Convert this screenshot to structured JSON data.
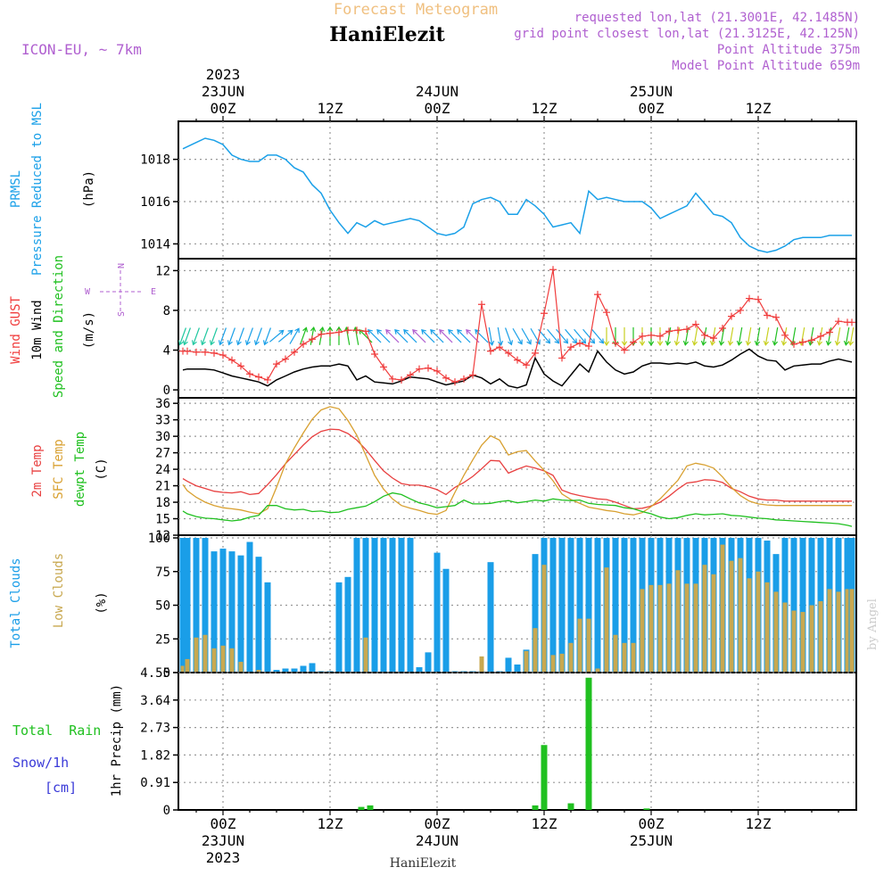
{
  "header": {
    "title": "Forecast Meteogram",
    "station": "HaniElezit",
    "model": "ICON-EU, ~ 7km",
    "requested": "requested lon,lat (21.3001E, 42.1485N)",
    "gridpoint": "grid point closest lon,lat (21.3125E, 42.125N)",
    "point_alt": "Point Altitude 375m",
    "model_alt": "Model Point Altitude 659m",
    "footer_station": "HaniElezit",
    "watermark": "by Angel"
  },
  "colors": {
    "pressure": "#1aa0e8",
    "gust": "#f03c3c",
    "wind": "#000000",
    "temp2m": "#e84040",
    "sfc": "#d8a030",
    "dewpt": "#20c020",
    "total_clouds": "#1a9ee8",
    "low_clouds": "#c8a850",
    "rain": "#20c020",
    "snow": "#3a3ad8",
    "dir_purple": "#b060d0",
    "title_color": "#f0c080"
  },
  "time_axis": {
    "top_labels": [
      {
        "h": 0,
        "lines": [
          "2023",
          "23JUN",
          "00Z"
        ]
      },
      {
        "h": 12,
        "lines": [
          "12Z"
        ]
      },
      {
        "h": 24,
        "lines": [
          "24JUN",
          "00Z"
        ]
      },
      {
        "h": 36,
        "lines": [
          "12Z"
        ]
      },
      {
        "h": 48,
        "lines": [
          "25JUN",
          "00Z"
        ]
      },
      {
        "h": 60,
        "lines": [
          "12Z"
        ]
      }
    ],
    "bottom_labels": [
      {
        "h": 0,
        "lines": [
          "00Z",
          "23JUN",
          "2023"
        ]
      },
      {
        "h": 12,
        "lines": [
          "12Z"
        ]
      },
      {
        "h": 24,
        "lines": [
          "00Z",
          "24JUN"
        ]
      },
      {
        "h": 36,
        "lines": [
          "12Z"
        ]
      },
      {
        "h": 48,
        "lines": [
          "00Z",
          "25JUN"
        ]
      },
      {
        "h": 60,
        "lines": [
          "12Z"
        ]
      }
    ],
    "range_hours": [
      -5,
      71
    ]
  },
  "panel_labels": {
    "pressure": {
      "a": "PRMSL",
      "b": "Pressure Reduced to MSL",
      "unit": "(hPa)"
    },
    "wind": {
      "gust": "Wind GUST",
      "wind": "10m Wind",
      "speed": "Speed and Direction",
      "unit": "(m/s)",
      "compass_n": "N",
      "compass_s": "S",
      "compass_w": "W",
      "compass_e": "E"
    },
    "temp": {
      "t2m": "2m Temp",
      "sfc": "SFC Temp",
      "dewpt": "dewpt Temp",
      "unit": "(C)"
    },
    "clouds": {
      "total": "Total Clouds",
      "low": "Low Clouds",
      "unit": "(%)"
    },
    "precip": {
      "rain": "Total  Rain",
      "snow": "Snow/1h",
      "snow_unit": "[cm]",
      "ylabel": "1hr Precip (mm)"
    }
  },
  "chart_data": [
    {
      "type": "line",
      "name": "PRMSL",
      "ylabel": "(hPa)",
      "ylim": [
        1013.3,
        1019.8
      ],
      "yticks": [
        1014,
        1016,
        1018
      ],
      "x": [
        -4.5,
        -4,
        -3,
        -2,
        -1,
        0,
        1,
        2,
        3,
        4,
        5,
        6,
        7,
        8,
        9,
        10,
        11,
        12,
        13,
        14,
        15,
        16,
        17,
        18,
        19,
        20,
        21,
        22,
        23,
        24,
        25,
        26,
        27,
        28,
        29,
        30,
        31,
        32,
        33,
        34,
        35,
        36,
        37,
        38,
        39,
        40,
        41,
        42,
        43,
        44,
        45,
        46,
        47,
        48,
        49,
        50,
        51,
        52,
        53,
        54,
        55,
        56,
        57,
        58,
        59,
        60,
        61,
        62,
        63,
        64,
        65,
        66,
        67,
        68,
        69,
        70,
        70.5
      ],
      "y": [
        1018.5,
        1018.6,
        1018.8,
        1019.0,
        1018.9,
        1018.7,
        1018.2,
        1018.0,
        1017.9,
        1017.9,
        1018.2,
        1018.2,
        1018.0,
        1017.6,
        1017.4,
        1016.8,
        1016.4,
        1015.6,
        1015.0,
        1014.5,
        1015.0,
        1014.8,
        1015.1,
        1014.9,
        1015.0,
        1015.1,
        1015.2,
        1015.1,
        1014.8,
        1014.5,
        1014.4,
        1014.5,
        1014.8,
        1015.9,
        1016.1,
        1016.2,
        1016.0,
        1015.4,
        1015.4,
        1016.1,
        1015.8,
        1015.4,
        1014.8,
        1014.9,
        1015.0,
        1014.5,
        1016.5,
        1016.1,
        1016.2,
        1016.1,
        1016.0,
        1016.0,
        1016.0,
        1015.7,
        1015.2,
        1015.4,
        1015.6,
        1015.8,
        1016.4,
        1015.9,
        1015.4,
        1015.3,
        1015.0,
        1014.3,
        1013.9,
        1013.7,
        1013.6,
        1013.7,
        1013.9,
        1014.2,
        1014.3,
        1014.3,
        1014.3,
        1014.4,
        1014.4,
        1014.4,
        1014.4
      ]
    },
    {
      "type": "line",
      "name": "Wind",
      "ylabel": "(m/s)",
      "ylim": [
        -0.8,
        13.2
      ],
      "yticks": [
        0,
        4,
        8,
        12
      ],
      "x": [
        -4.5,
        -4,
        -3,
        -2,
        -1,
        0,
        1,
        2,
        3,
        4,
        5,
        6,
        7,
        8,
        9,
        10,
        11,
        12,
        13,
        14,
        15,
        16,
        17,
        18,
        19,
        20,
        21,
        22,
        23,
        24,
        25,
        26,
        27,
        28,
        29,
        30,
        31,
        32,
        33,
        34,
        35,
        36,
        37,
        38,
        39,
        40,
        41,
        42,
        43,
        44,
        45,
        46,
        47,
        48,
        49,
        50,
        51,
        52,
        53,
        54,
        55,
        56,
        57,
        58,
        59,
        60,
        61,
        62,
        63,
        64,
        65,
        66,
        67,
        68,
        69,
        70,
        70.5
      ],
      "series": [
        {
          "name": "Wind GUST",
          "values": [
            3.9,
            3.9,
            3.8,
            3.8,
            3.7,
            3.5,
            3.0,
            2.4,
            1.6,
            1.3,
            1.0,
            2.6,
            3.1,
            3.8,
            4.6,
            5.1,
            5.6,
            5.7,
            5.8,
            6.0,
            6.0,
            5.9,
            3.6,
            2.3,
            1.1,
            1.0,
            1.5,
            2.1,
            2.2,
            1.9,
            1.2,
            0.8,
            1.1,
            1.5,
            8.6,
            3.9,
            4.3,
            3.7,
            3.0,
            2.5,
            3.7,
            7.7,
            12.1,
            3.2,
            4.3,
            4.7,
            4.4,
            9.6,
            7.8,
            4.7,
            4.0,
            4.8,
            5.4,
            5.5,
            5.4,
            5.9,
            6.0,
            6.1,
            6.6,
            5.5,
            5.2,
            6.2,
            7.4,
            8.0,
            9.2,
            9.1,
            7.5,
            7.3,
            5.5,
            4.6,
            4.8,
            5.0,
            5.4,
            5.8,
            6.9,
            6.8,
            6.8
          ]
        },
        {
          "name": "10m Wind",
          "values": [
            2.0,
            2.1,
            2.1,
            2.1,
            2.0,
            1.7,
            1.4,
            1.2,
            1.0,
            0.8,
            0.4,
            1.0,
            1.4,
            1.8,
            2.1,
            2.3,
            2.4,
            2.4,
            2.6,
            2.4,
            1.0,
            1.4,
            0.8,
            0.7,
            0.6,
            0.9,
            1.3,
            1.2,
            1.1,
            0.8,
            0.5,
            0.7,
            0.9,
            1.5,
            1.2,
            0.6,
            1.1,
            0.4,
            0.2,
            0.5,
            3.2,
            1.6,
            0.9,
            0.4,
            1.5,
            2.6,
            1.8,
            3.9,
            2.8,
            2.0,
            1.6,
            1.8,
            2.4,
            2.7,
            2.7,
            2.6,
            2.7,
            2.6,
            2.8,
            2.4,
            2.3,
            2.5,
            3.0,
            3.6,
            4.1,
            3.4,
            3.0,
            2.9,
            2.0,
            2.4,
            2.5,
            2.6,
            2.6,
            2.9,
            3.1,
            2.9,
            2.8
          ]
        }
      ],
      "arrow_dirs_deg_from_north": [
        20,
        20,
        20,
        20,
        20,
        20,
        20,
        20,
        20,
        20,
        20,
        230,
        230,
        210,
        200,
        190,
        190,
        180,
        180,
        170,
        170,
        135,
        135,
        135,
        135,
        135,
        135,
        135,
        135,
        135,
        135,
        135,
        135,
        135,
        135,
        350,
        350,
        340,
        330,
        330,
        330,
        320,
        320,
        320,
        320,
        320,
        320,
        320,
        0,
        0,
        0,
        0,
        0,
        0,
        0,
        10,
        10,
        10,
        10,
        10,
        10,
        10,
        10,
        10,
        10,
        10,
        10,
        10,
        10,
        10,
        10,
        10,
        10,
        10,
        10,
        10,
        10
      ]
    },
    {
      "type": "line",
      "name": "Temperature",
      "ylabel": "(C)",
      "ylim": [
        12,
        37
      ],
      "yticks": [
        12,
        15,
        18,
        21,
        24,
        27,
        30,
        33,
        36
      ],
      "x": [
        -4.5,
        -4,
        -3,
        -2,
        -1,
        0,
        1,
        2,
        3,
        4,
        5,
        6,
        7,
        8,
        9,
        10,
        11,
        12,
        13,
        14,
        15,
        16,
        17,
        18,
        19,
        20,
        21,
        22,
        23,
        24,
        25,
        26,
        27,
        28,
        29,
        30,
        31,
        32,
        33,
        34,
        35,
        36,
        37,
        38,
        39,
        40,
        41,
        42,
        43,
        44,
        45,
        46,
        47,
        48,
        49,
        50,
        51,
        52,
        53,
        54,
        55,
        56,
        57,
        58,
        59,
        60,
        61,
        62,
        63,
        64,
        65,
        66,
        67,
        68,
        69,
        70,
        70.5
      ],
      "series": [
        {
          "name": "2m Temp",
          "values": [
            22.3,
            21.8,
            21.0,
            20.5,
            20.0,
            19.8,
            19.7,
            19.9,
            19.4,
            19.6,
            21.2,
            23.0,
            25.0,
            26.7,
            28.4,
            29.9,
            30.9,
            31.3,
            31.2,
            30.5,
            29.3,
            27.6,
            25.6,
            23.7,
            22.4,
            21.4,
            21.1,
            21.1,
            20.8,
            20.3,
            19.4,
            20.7,
            21.6,
            22.7,
            24.1,
            25.6,
            25.5,
            23.3,
            24.0,
            24.6,
            24.2,
            23.7,
            22.9,
            20.2,
            19.6,
            19.2,
            18.9,
            18.6,
            18.5,
            18.0,
            17.4,
            16.8,
            16.9,
            17.3,
            18.0,
            19.1,
            20.4,
            21.5,
            21.7,
            22.1,
            22.0,
            21.6,
            20.5,
            19.9,
            19.1,
            18.6,
            18.4,
            18.4,
            18.2,
            18.2,
            18.2,
            18.2,
            18.2,
            18.2,
            18.2,
            18.2,
            18.2
          ]
        },
        {
          "name": "SFC Temp",
          "values": [
            21.2,
            20.1,
            18.9,
            18.0,
            17.4,
            17.0,
            16.8,
            16.6,
            16.2,
            15.9,
            16.8,
            20.7,
            25.0,
            27.9,
            30.6,
            33.1,
            34.8,
            35.4,
            35.0,
            32.9,
            30.2,
            26.6,
            22.9,
            20.4,
            18.6,
            17.4,
            16.9,
            16.5,
            16.0,
            15.8,
            16.5,
            19.8,
            22.9,
            25.7,
            28.4,
            30.1,
            29.3,
            26.6,
            27.2,
            27.4,
            25.5,
            23.8,
            21.9,
            19.5,
            18.5,
            17.8,
            17.1,
            16.8,
            16.5,
            16.3,
            15.9,
            15.7,
            16.1,
            17.2,
            18.6,
            20.3,
            22.0,
            24.6,
            25.1,
            24.8,
            24.2,
            22.6,
            20.7,
            19.2,
            18.2,
            17.7,
            17.5,
            17.4,
            17.4,
            17.4,
            17.4,
            17.4,
            17.4,
            17.4,
            17.4,
            17.4,
            17.4
          ]
        },
        {
          "name": "dewpt Temp",
          "values": [
            16.4,
            15.9,
            15.4,
            15.1,
            15.0,
            14.8,
            14.6,
            14.8,
            15.3,
            15.6,
            17.4,
            17.4,
            16.8,
            16.6,
            16.7,
            16.3,
            16.4,
            16.1,
            16.2,
            16.7,
            17.0,
            17.3,
            18.1,
            19.1,
            19.7,
            19.4,
            18.6,
            17.9,
            17.5,
            17.0,
            17.2,
            17.4,
            18.4,
            17.7,
            17.7,
            17.8,
            18.1,
            18.3,
            17.9,
            18.1,
            18.4,
            18.2,
            18.6,
            18.4,
            18.3,
            18.4,
            17.8,
            17.6,
            17.5,
            17.4,
            17.0,
            16.8,
            16.3,
            15.9,
            15.3,
            15.0,
            15.2,
            15.6,
            15.9,
            15.7,
            15.8,
            15.9,
            15.6,
            15.5,
            15.3,
            15.1,
            15.0,
            14.8,
            14.7,
            14.6,
            14.5,
            14.4,
            14.3,
            14.2,
            14.1,
            13.8,
            13.6
          ]
        }
      ]
    },
    {
      "type": "bar",
      "name": "Clouds",
      "ylabel": "(%)",
      "ylim": [
        0,
        102
      ],
      "yticks": [
        0,
        25,
        50,
        75,
        100
      ],
      "x": [
        -4.5,
        -4,
        -3,
        -2,
        -1,
        0,
        1,
        2,
        3,
        4,
        5,
        6,
        7,
        8,
        9,
        10,
        11,
        12,
        13,
        14,
        15,
        16,
        17,
        18,
        19,
        20,
        21,
        22,
        23,
        24,
        25,
        26,
        27,
        28,
        29,
        30,
        31,
        32,
        33,
        34,
        35,
        36,
        37,
        38,
        39,
        40,
        41,
        42,
        43,
        44,
        45,
        46,
        47,
        48,
        49,
        50,
        51,
        52,
        53,
        54,
        55,
        56,
        57,
        58,
        59,
        60,
        61,
        62,
        63,
        64,
        65,
        66,
        67,
        68,
        69,
        70,
        70.5
      ],
      "series": [
        {
          "name": "Total Clouds",
          "values": [
            100,
            100,
            100,
            100,
            90,
            92,
            90,
            87,
            97,
            86,
            67,
            2,
            3,
            3,
            5,
            7,
            1,
            1,
            67,
            71,
            100,
            100,
            100,
            100,
            100,
            100,
            100,
            4,
            15,
            89,
            77,
            1,
            1,
            1,
            1,
            82,
            1,
            11,
            6,
            17,
            88,
            100,
            100,
            100,
            100,
            100,
            100,
            100,
            100,
            100,
            100,
            100,
            100,
            100,
            100,
            100,
            100,
            100,
            100,
            100,
            100,
            100,
            100,
            100,
            100,
            100,
            98,
            88,
            100,
            100,
            100,
            100,
            100,
            100,
            100,
            100,
            100
          ]
        },
        {
          "name": "Low Clouds",
          "values": [
            5,
            10,
            26,
            28,
            18,
            20,
            18,
            8,
            0,
            2,
            0,
            0,
            0,
            0,
            0,
            0,
            0,
            0,
            0,
            0,
            0,
            26,
            0,
            0,
            0,
            0,
            0,
            0,
            0,
            0,
            0,
            0,
            0,
            0,
            12,
            0,
            0,
            0,
            0,
            16,
            33,
            80,
            13,
            14,
            22,
            40,
            40,
            3,
            78,
            28,
            22,
            22,
            62,
            65,
            65,
            66,
            76,
            66,
            66,
            80,
            73,
            95,
            83,
            85,
            70,
            75,
            67,
            60,
            52,
            46,
            45,
            50,
            53,
            62,
            60,
            62,
            62
          ]
        }
      ]
    },
    {
      "type": "bar",
      "name": "1hr Precip",
      "ylabel": "1hr Precip (mm)",
      "ylim": [
        0,
        4.55
      ],
      "yticks": [
        0,
        0.91,
        1.82,
        2.73,
        3.64,
        4.55
      ],
      "x": [
        15.5,
        16.5,
        35,
        36,
        39,
        41,
        47.5
      ],
      "values": [
        0.1,
        0.15,
        0.15,
        2.15,
        0.22,
        4.38,
        0.05
      ]
    }
  ]
}
